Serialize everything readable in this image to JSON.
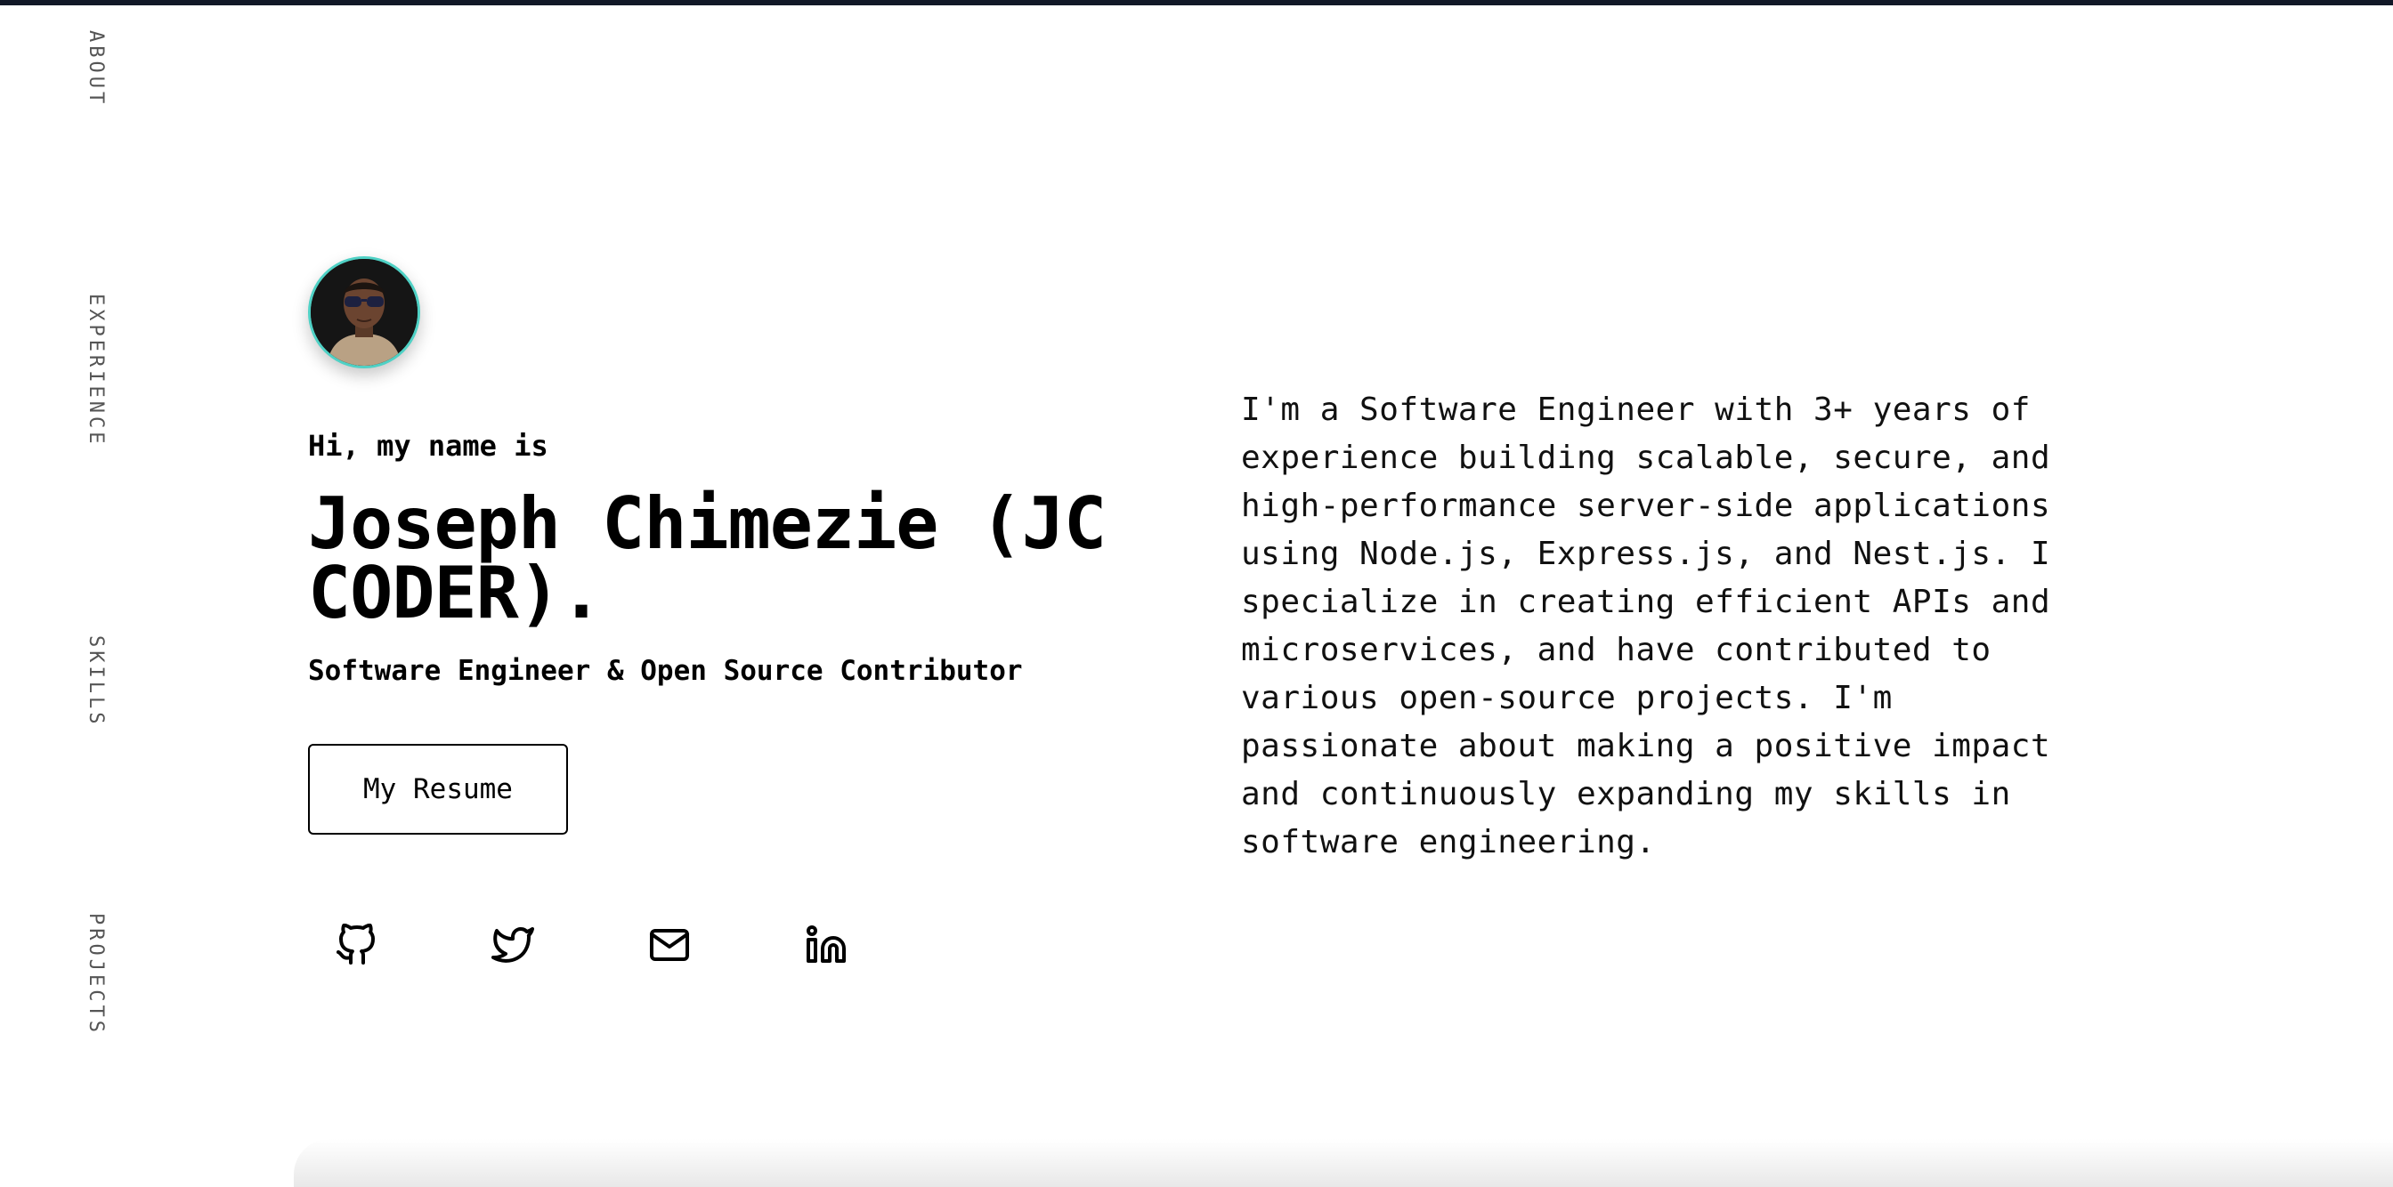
{
  "nav": {
    "items": [
      {
        "label": "ABOUT"
      },
      {
        "label": "EXPERIENCE"
      },
      {
        "label": "SKILLS"
      },
      {
        "label": "PROJECTS"
      }
    ]
  },
  "hero": {
    "greeting": "Hi, my name is",
    "name": "Joseph Chimezie (JC CODER).",
    "role": "Software Engineer & Open Source Contributor",
    "resume_button": "My Resume",
    "social_icons": [
      "github-icon",
      "twitter-icon",
      "mail-icon",
      "linkedin-icon"
    ],
    "accent_color": "#4fd1c5"
  },
  "about": {
    "bio": "I'm a Software Engineer with 3+ years of\nexperience building scalable, secure, and\nhigh-performance server-side applications\nusing Node.js, Express.js, and Nest.js. I\nspecialize in creating efficient APIs and\nmicroservices, and have contributed to\nvarious open-source projects. I'm\npassionate about making a positive impact\nand continuously expanding my skills in\nsoftware engineering."
  }
}
